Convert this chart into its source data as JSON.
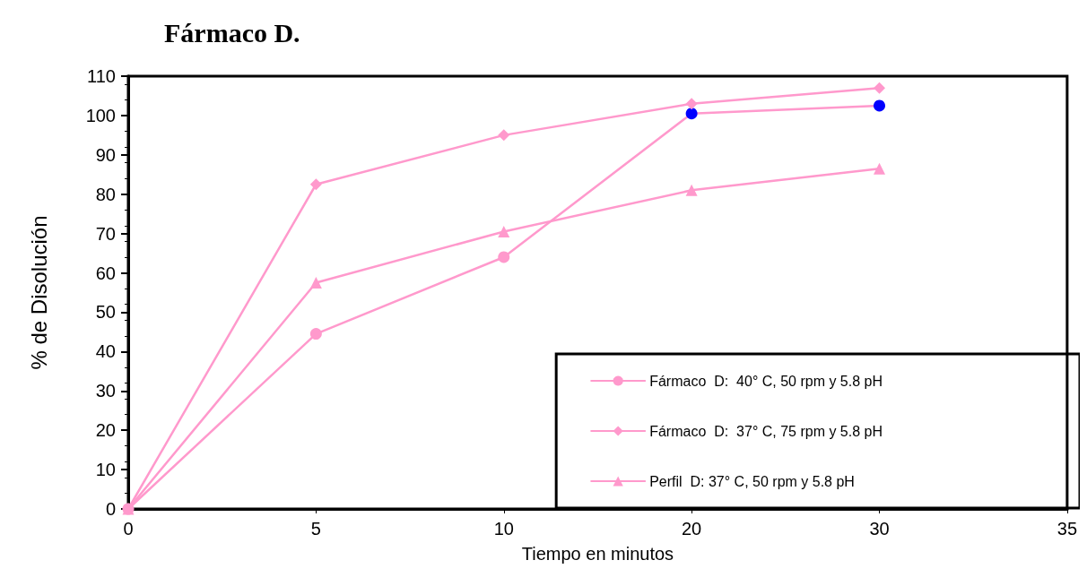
{
  "chart_data": {
    "type": "line",
    "title": "Fármaco D.",
    "xlabel": "Tiempo en minutos",
    "ylabel": "% de Disolución",
    "categories": [
      "0",
      "5",
      "10",
      "20",
      "30",
      "35"
    ],
    "series": [
      {
        "name": "Fármaco  D:  40° C, 50 rpm y 5.8 pH",
        "color": "#ff99cc",
        "marker": "circle",
        "values": [
          0,
          44.5,
          64,
          100.5,
          102.5,
          null
        ],
        "colors": [
          "#ff99cc",
          "#ff99cc",
          "#ff99cc",
          "#0000ff",
          "#0000ff",
          null
        ]
      },
      {
        "name": "Fármaco  D:  37° C, 75 rpm y 5.8 pH",
        "color": "#ff99cc",
        "marker": "diamond",
        "values": [
          0,
          82.5,
          95,
          103,
          107,
          null
        ]
      },
      {
        "name": "Perfil  D: 37° C, 50 rpm y 5.8 pH",
        "color": "#ff99cc",
        "marker": "triangle",
        "values": [
          0,
          57.5,
          70.5,
          81,
          86.5,
          null
        ]
      }
    ],
    "ylim": [
      0,
      110
    ],
    "yticks": [
      0,
      10,
      20,
      30,
      40,
      50,
      60,
      70,
      80,
      90,
      100,
      110
    ],
    "grid": false,
    "legend": "bottom right",
    "line_style": "solid"
  }
}
